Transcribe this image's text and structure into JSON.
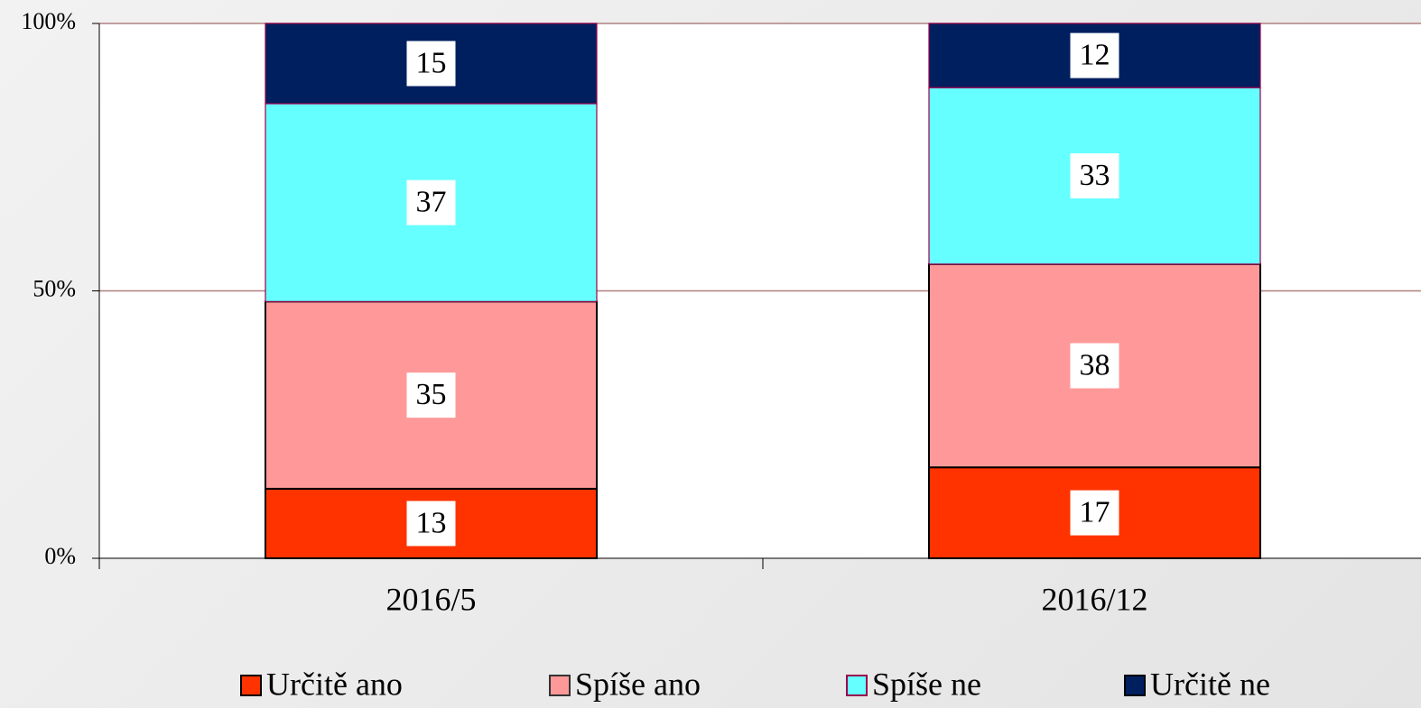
{
  "chart_data": {
    "type": "stacked_bar",
    "categories": [
      "2016/5",
      "2016/12"
    ],
    "series": [
      {
        "name": "Určitě ano",
        "color": "#ff3300",
        "values": [
          13,
          17
        ]
      },
      {
        "name": "Spíše ano",
        "color": "#ff9999",
        "values": [
          35,
          38
        ]
      },
      {
        "name": "Spíše ne",
        "color": "#66ffff",
        "values": [
          37,
          33
        ]
      },
      {
        "name": "Určitě ne",
        "color": "#001f5f",
        "values": [
          15,
          12
        ]
      }
    ],
    "ylim": [
      0,
      100
    ],
    "yticks": [
      {
        "value": 0,
        "label": "0%"
      },
      {
        "value": 50,
        "label": "50%"
      },
      {
        "value": 100,
        "label": "100%"
      }
    ],
    "grid": true,
    "legend": "bottom"
  }
}
